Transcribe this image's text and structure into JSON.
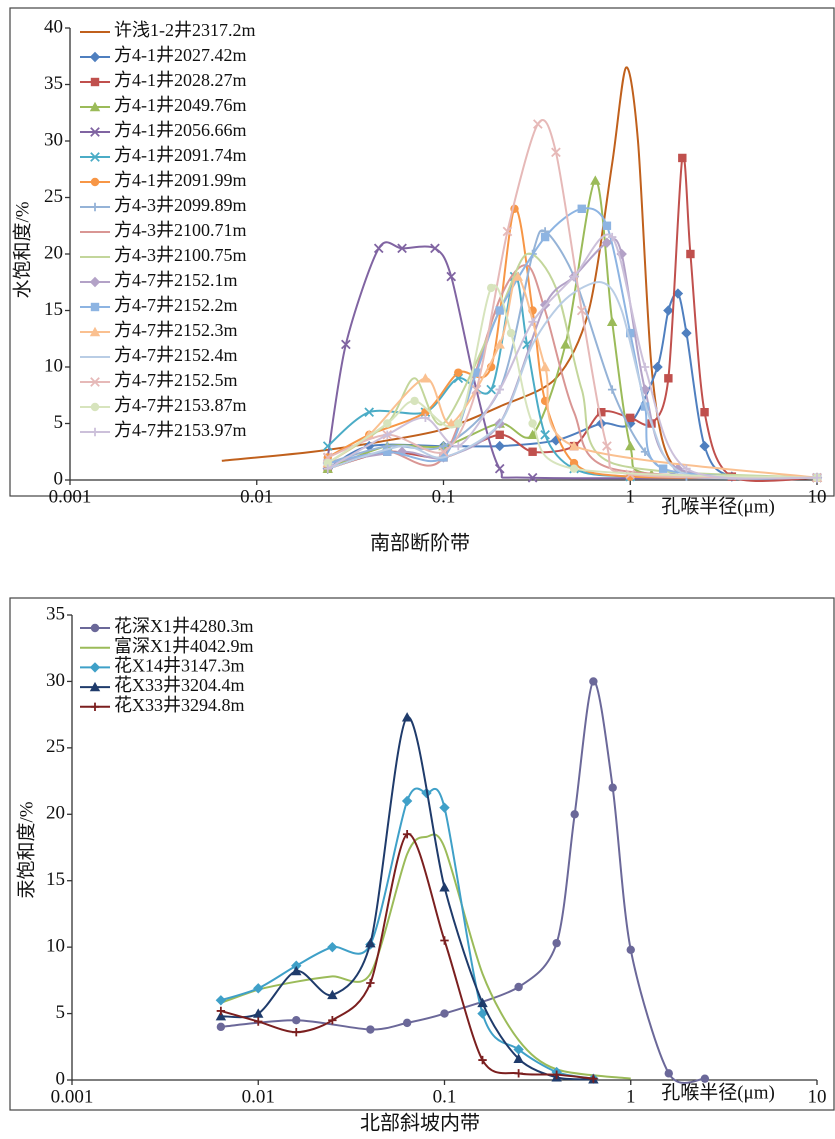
{
  "chart_data": [
    {
      "type": "line",
      "log_x": true,
      "legend": "upper left",
      "ylabel": "水饱和度/%",
      "xlabel": "孔喉半径(μm)",
      "caption": "南部断阶带",
      "xlim": [
        0.001,
        10
      ],
      "xticks": [
        0.001,
        0.01,
        0.1,
        1,
        10
      ],
      "ylim": [
        0,
        40
      ],
      "yticks": [
        0,
        5,
        10,
        15,
        20,
        25,
        30,
        35,
        40
      ],
      "series": [
        {
          "name": "许浅1-2井2317.2m",
          "color": "#c0601c",
          "marker": "none",
          "x": [
            0.0065,
            0.02,
            0.05,
            0.1,
            0.2,
            0.4,
            0.6,
            0.8,
            0.95,
            1.1,
            1.3,
            1.6,
            2.5,
            10
          ],
          "values": [
            1.7,
            2.5,
            3.5,
            4.5,
            6.5,
            9,
            15,
            28,
            36.5,
            30,
            10,
            2,
            0.3,
            0.2
          ]
        },
        {
          "name": "方4-1井2027.42m",
          "color": "#4f7fbf",
          "marker": "diamond",
          "x": [
            0.024,
            0.04,
            0.1,
            0.2,
            0.4,
            0.7,
            1,
            1.4,
            1.6,
            1.8,
            2,
            2.5,
            3.5,
            10
          ],
          "values": [
            1,
            3,
            3,
            3,
            3.5,
            5,
            5,
            10,
            15,
            16.5,
            13,
            3,
            0.3,
            0.2
          ]
        },
        {
          "name": "方4-1井2028.27m",
          "color": "#c0504d",
          "marker": "square",
          "x": [
            0.024,
            0.05,
            0.1,
            0.2,
            0.3,
            0.5,
            0.7,
            1,
            1.3,
            1.6,
            1.9,
            2.1,
            2.5,
            3.5,
            10
          ],
          "values": [
            1,
            2.5,
            2,
            4,
            2.5,
            3,
            6,
            5.5,
            5,
            9,
            28.5,
            20,
            6,
            0.3,
            0.2
          ]
        },
        {
          "name": "方4-1井2049.76m",
          "color": "#9bbb59",
          "marker": "triangle",
          "x": [
            0.024,
            0.05,
            0.1,
            0.2,
            0.3,
            0.45,
            0.65,
            0.8,
            1,
            1.3,
            10
          ],
          "values": [
            1,
            3,
            3,
            5,
            4,
            12,
            26.5,
            14,
            3,
            0.5,
            0.2
          ]
        },
        {
          "name": "方4-1井2056.66m",
          "color": "#8064a2",
          "marker": "x",
          "x": [
            0.024,
            0.03,
            0.045,
            0.06,
            0.09,
            0.11,
            0.15,
            0.2,
            0.3,
            10
          ],
          "values": [
            2,
            12,
            20.5,
            20.5,
            20.5,
            18,
            8,
            1,
            0.2,
            0.2
          ]
        },
        {
          "name": "方4-1井2091.74m",
          "color": "#4bacc6",
          "marker": "x",
          "x": [
            0.024,
            0.04,
            0.08,
            0.12,
            0.18,
            0.24,
            0.28,
            0.35,
            0.5,
            1,
            10
          ],
          "values": [
            3,
            6,
            6,
            9,
            8,
            18,
            12,
            4,
            1,
            0.3,
            0.2
          ]
        },
        {
          "name": "方4-1井2091.99m",
          "color": "#f79646",
          "marker": "circle",
          "x": [
            0.024,
            0.04,
            0.08,
            0.12,
            0.18,
            0.24,
            0.3,
            0.35,
            0.5,
            1,
            10
          ],
          "values": [
            2,
            4,
            6,
            9.5,
            10,
            24,
            15,
            7,
            1.5,
            0.3,
            0.2
          ]
        },
        {
          "name": "方4-3井2099.89m",
          "color": "#95b3d7",
          "marker": "plus",
          "x": [
            0.024,
            0.05,
            0.1,
            0.2,
            0.3,
            0.35,
            0.5,
            0.8,
            1.2,
            2,
            10
          ],
          "values": [
            1.5,
            3,
            3,
            8,
            20,
            22,
            18,
            8,
            2.5,
            0.3,
            0.2
          ]
        },
        {
          "name": "方4-3井2100.71m",
          "color": "#d99694",
          "marker": "none",
          "x": [
            0.024,
            0.05,
            0.1,
            0.2,
            0.28,
            0.35,
            0.5,
            0.8,
            10
          ],
          "values": [
            1.5,
            2.5,
            2,
            16,
            19,
            15,
            6,
            1,
            0.2
          ]
        },
        {
          "name": "方4-3井2100.75m",
          "color": "#c3d69b",
          "marker": "none",
          "x": [
            0.024,
            0.05,
            0.07,
            0.1,
            0.2,
            0.28,
            0.4,
            0.55,
            0.8,
            10
          ],
          "values": [
            1.5,
            5,
            9,
            5,
            15,
            20,
            17,
            8,
            1.5,
            0.2
          ]
        },
        {
          "name": "方4-7井2152.1m",
          "color": "#b3a2c7",
          "marker": "diamond",
          "x": [
            0.024,
            0.06,
            0.1,
            0.2,
            0.35,
            0.5,
            0.75,
            0.9,
            1.2,
            1.8,
            10
          ],
          "values": [
            1.5,
            2.5,
            2,
            5,
            15.5,
            18,
            21,
            20,
            8,
            1,
            0.2
          ]
        },
        {
          "name": "方4-7井2152.2m",
          "color": "#8db4e2",
          "marker": "square",
          "x": [
            0.024,
            0.05,
            0.1,
            0.15,
            0.2,
            0.35,
            0.55,
            0.75,
            1,
            1.2,
            1.5,
            10
          ],
          "values": [
            1.5,
            2.5,
            2,
            9.5,
            15,
            21.5,
            24,
            22.5,
            13,
            6.5,
            1,
            0.2
          ]
        },
        {
          "name": "方4-7井2152.3m",
          "color": "#fac090",
          "marker": "triangle",
          "x": [
            0.024,
            0.04,
            0.08,
            0.11,
            0.2,
            0.25,
            0.35,
            0.5,
            10
          ],
          "values": [
            1.5,
            4,
            9,
            5,
            12,
            18,
            10,
            3,
            0.2
          ]
        },
        {
          "name": "方4-7井2152.4m",
          "color": "#b9cde5",
          "marker": "none",
          "x": [
            0.024,
            0.06,
            0.1,
            0.2,
            0.3,
            0.45,
            0.7,
            0.9,
            1.3,
            2,
            10
          ],
          "values": [
            1,
            3,
            2,
            5,
            12,
            16,
            17.5,
            15,
            5,
            0.5,
            0.2
          ]
        },
        {
          "name": "方4-7井2152.5m",
          "color": "#e6b9b8",
          "marker": "x",
          "x": [
            0.024,
            0.05,
            0.1,
            0.15,
            0.22,
            0.32,
            0.4,
            0.55,
            0.75,
            1,
            10
          ],
          "values": [
            2,
            4,
            2.5,
            8,
            22,
            31.5,
            29,
            15,
            3,
            0.5,
            0.2
          ]
        },
        {
          "name": "方4-7井2153.87m",
          "color": "#d7e4bd",
          "marker": "circle",
          "x": [
            0.024,
            0.05,
            0.07,
            0.12,
            0.18,
            0.23,
            0.3,
            0.5,
            10
          ],
          "values": [
            1.5,
            5,
            7,
            5,
            17,
            13,
            5,
            1,
            0.2
          ]
        },
        {
          "name": "方4-7井2153.97m",
          "color": "#ccc0da",
          "marker": "plus",
          "x": [
            0.024,
            0.05,
            0.08,
            0.12,
            0.2,
            0.3,
            0.5,
            0.8,
            1.2,
            2,
            10
          ],
          "values": [
            1,
            4,
            5.5,
            3,
            8,
            14,
            18,
            21.5,
            10,
            1,
            0.2
          ]
        }
      ]
    },
    {
      "type": "line",
      "log_x": true,
      "legend": "upper left",
      "ylabel": "汞饱和度/%",
      "xlabel": "孔喉半径(μm)",
      "caption": "北部斜坡内带",
      "xlim": [
        0.001,
        10
      ],
      "xticks": [
        0.001,
        0.01,
        0.1,
        1,
        10
      ],
      "ylim": [
        0,
        35
      ],
      "yticks": [
        0,
        5,
        10,
        15,
        20,
        25,
        30,
        35
      ],
      "series": [
        {
          "name": "花深X1井4280.3m",
          "color": "#6b6899",
          "marker": "circle",
          "x": [
            0.0063,
            0.016,
            0.04,
            0.063,
            0.1,
            0.25,
            0.4,
            0.5,
            0.63,
            0.8,
            1,
            1.6,
            2.5
          ],
          "values": [
            4,
            4.5,
            3.8,
            4.3,
            5,
            7,
            10.3,
            20,
            30,
            22,
            9.8,
            0.5,
            0.1
          ]
        },
        {
          "name": "富深X1井4042.9m",
          "color": "#9bbb59",
          "marker": "none",
          "x": [
            0.0063,
            0.01,
            0.016,
            0.025,
            0.04,
            0.063,
            0.08,
            0.1,
            0.16,
            0.25,
            0.4,
            1
          ],
          "values": [
            5.8,
            6.8,
            7.4,
            7.8,
            8,
            17,
            18.3,
            17.5,
            8,
            3,
            0.8,
            0.1
          ]
        },
        {
          "name": "花X14井3147.3m",
          "color": "#3fa0c8",
          "marker": "diamond",
          "x": [
            0.0063,
            0.01,
            0.016,
            0.025,
            0.04,
            0.063,
            0.08,
            0.1,
            0.16,
            0.25,
            0.4,
            0.63
          ],
          "values": [
            6,
            6.9,
            8.6,
            10,
            10.2,
            21,
            21.6,
            20.5,
            5,
            2.3,
            0.6,
            0.1
          ]
        },
        {
          "name": "花X33井3204.4m",
          "color": "#1f3b6b",
          "marker": "triangle",
          "x": [
            0.0063,
            0.01,
            0.016,
            0.025,
            0.04,
            0.063,
            0.1,
            0.16,
            0.25,
            0.4,
            0.63
          ],
          "values": [
            4.8,
            5,
            8.2,
            6.4,
            10.3,
            27.3,
            14.5,
            5.8,
            1.6,
            0.2,
            0.05
          ]
        },
        {
          "name": "花X33井3294.8m",
          "color": "#7b1f1f",
          "marker": "plus",
          "x": [
            0.0063,
            0.01,
            0.016,
            0.025,
            0.04,
            0.063,
            0.1,
            0.16,
            0.25,
            0.4,
            0.63
          ],
          "values": [
            5.2,
            4.4,
            3.6,
            4.5,
            7.3,
            18.5,
            10.5,
            1.5,
            0.5,
            0.4,
            0.1
          ]
        }
      ]
    }
  ]
}
